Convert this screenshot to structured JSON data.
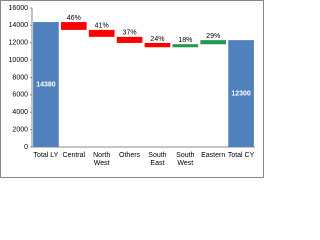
{
  "chart_data": {
    "type": "waterfall",
    "categories": [
      "Total LY",
      "Central",
      "North West",
      "Others",
      "South East",
      "South West",
      "Eastern",
      "Total CY"
    ],
    "values": [
      14380,
      -900,
      -800,
      -700,
      -500,
      350,
      470,
      12300
    ],
    "is_total": [
      true,
      false,
      false,
      false,
      false,
      false,
      false,
      true
    ],
    "annotations": [
      null,
      "46%",
      "41%",
      "37%",
      "24%",
      "18%",
      "29%",
      null
    ],
    "colors": {
      "total": "#4f81bd",
      "decrease": "#ff0000",
      "increase": "#1e9a4a"
    },
    "ylim": [
      0,
      16000
    ],
    "yticks": [
      0,
      2000,
      4000,
      6000,
      8000,
      10000,
      12000,
      14000,
      16000
    ],
    "grid": false
  }
}
